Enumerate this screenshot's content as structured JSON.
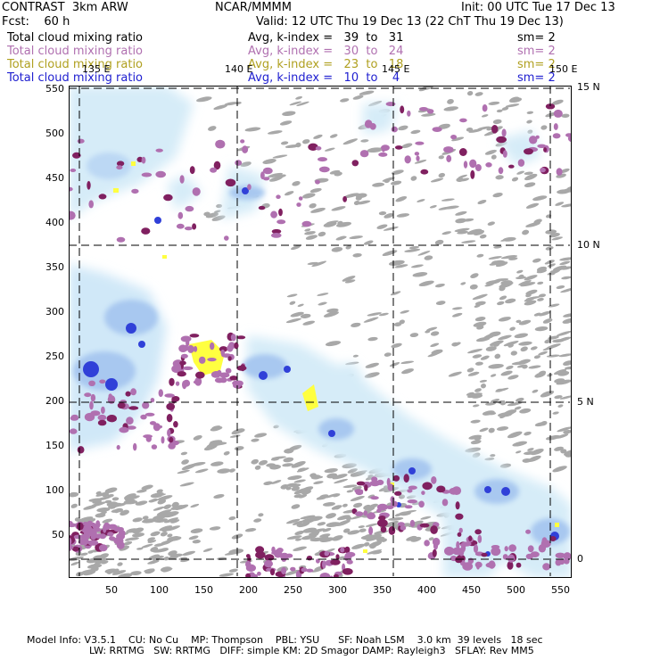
{
  "header": {
    "model_name": "CONTRAST  3km ARW",
    "org": "NCAR/MMMM",
    "init": "Init: 00 UTC Tue 17 Dec 13",
    "fcst": "Fcst:    60 h",
    "valid": "Valid: 12 UTC Thu 19 Dec 13 (22 ChT Thu 19 Dec 13)"
  },
  "legend": [
    {
      "field": "Total cloud mixing ratio",
      "range": "Avg, k-index =   39  to   31",
      "sm": "sm= 2",
      "color": "#000000"
    },
    {
      "field": "Total cloud mixing ratio",
      "range": "Avg, k-index =   30  to   24",
      "sm": "sm= 2",
      "color": "#b070b0"
    },
    {
      "field": "Total cloud mixing ratio",
      "range": "Avg, k-index =   23  to   18",
      "sm": "sm= 2",
      "color": "#b0a020"
    },
    {
      "field": "Total cloud mixing ratio",
      "range": "Avg, k-index =   10  to    4",
      "sm": "sm= 2",
      "color": "#2020d0"
    }
  ],
  "map": {
    "lon_labels": [
      "135 E",
      "140 E",
      "145 E",
      "150 E"
    ],
    "lat_labels": [
      "15 N",
      "10 N",
      "5 N",
      "0"
    ],
    "x_ticks": [
      "50",
      "100",
      "150",
      "200",
      "250",
      "300",
      "350",
      "400",
      "450",
      "500",
      "550"
    ],
    "y_ticks": [
      "550",
      "500",
      "450",
      "400",
      "350",
      "300",
      "250",
      "200",
      "150",
      "100",
      "50"
    ]
  },
  "footer": {
    "line1": "Model Info: V3.5.1    CU: No Cu    MP: Thompson    PBL: YSU      SF: Noah LSM    3.0 km  39 levels   18 sec",
    "line2": "LW: RRTMG   SW: RRTMG   DIFF: simple KM: 2D Smagor DAMP: Rayleigh3   SFLAY: Rev MM5"
  }
}
